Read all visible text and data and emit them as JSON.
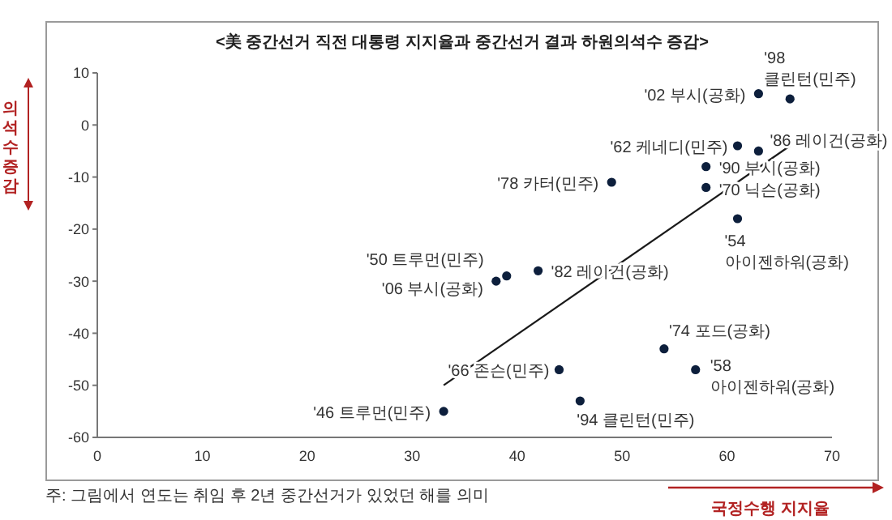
{
  "chart_data": {
    "type": "scatter",
    "title": "<美 중간선거 직전 대통령 지지율과 중간선거 결과 하원의석수 증감>",
    "xlabel": "국정수행 지지율",
    "ylabel": "의석수 증감",
    "xlim": [
      0,
      70
    ],
    "xticks": [
      0,
      10,
      20,
      30,
      40,
      50,
      60,
      70
    ],
    "ylim": [
      -60,
      10
    ],
    "yticks": [
      -60,
      -50,
      -40,
      -30,
      -20,
      -10,
      0,
      10
    ],
    "series": [
      {
        "marker": "circle",
        "color": "#0d1f3c",
        "x": [
          63,
          66,
          61,
          63,
          58,
          58,
          61,
          49,
          42,
          39,
          38,
          54,
          57,
          44,
          46,
          33
        ],
        "values": [
          6,
          5,
          -4,
          -5,
          -8,
          -12,
          -18,
          -11,
          -28,
          -29,
          -30,
          -43,
          -47,
          -47,
          -53,
          -55
        ]
      },
      {
        "type": "line",
        "color": "#1a1a1a",
        "x": [
          33,
          66
        ],
        "values": [
          -50,
          -4
        ]
      }
    ],
    "annotations": [
      {
        "text": "'02 부시(공화)",
        "x": 63,
        "y": 6
      },
      {
        "text": "'98\n클린턴(민주)",
        "x": 66,
        "y": 5
      },
      {
        "text": "'62 케네디(민주)",
        "x": 61,
        "y": -4
      },
      {
        "text": "'86 레이건(공화)",
        "x": 63,
        "y": -5
      },
      {
        "text": "'90 부시(공화)",
        "x": 58,
        "y": -8
      },
      {
        "text": "'70 닉슨(공화)",
        "x": 58,
        "y": -12
      },
      {
        "text": "'54\n아이젠하워(공화)",
        "x": 61,
        "y": -18
      },
      {
        "text": "'78 카터(민주)",
        "x": 49,
        "y": -11
      },
      {
        "text": "'82 레이건(공화)",
        "x": 42,
        "y": -28
      },
      {
        "text": "'50 트루먼(민주)",
        "x": 39,
        "y": -29
      },
      {
        "text": "'06 부시(공화)",
        "x": 38,
        "y": -30
      },
      {
        "text": "'74 포드(공화)",
        "x": 54,
        "y": -43
      },
      {
        "text": "'58\n아이젠하워(공화)",
        "x": 57,
        "y": -47
      },
      {
        "text": "'66 존슨(민주)",
        "x": 44,
        "y": -47
      },
      {
        "text": "'94 클린턴(민주)",
        "x": 46,
        "y": -53
      },
      {
        "text": "'46 트루먼(민주)",
        "x": 33,
        "y": -55
      },
      "주: 그림에서 연도는 취임 후 2년 중간선거가 있었던 해를 의미"
    ]
  }
}
